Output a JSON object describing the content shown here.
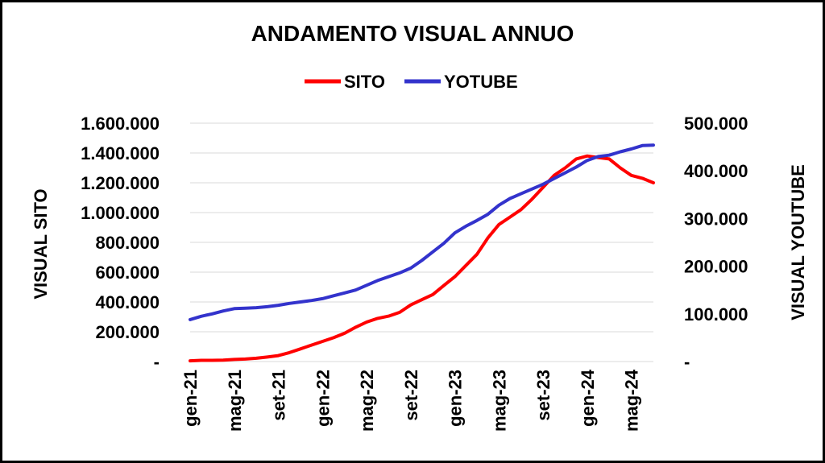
{
  "chart_data": {
    "type": "line",
    "title": "ANDAMENTO VISUAL ANNUO",
    "ylabel": "VISUAL SITO",
    "y2label": "VISUAL YOUTUBE",
    "legend_position": "top",
    "grid": true,
    "x_tick_labels": [
      "gen-21",
      "mag-21",
      "set-21",
      "gen-22",
      "mag-22",
      "set-22",
      "gen-23",
      "mag-23",
      "set-23",
      "gen-24",
      "mag-24"
    ],
    "y_tick_labels": [
      "-",
      "200.000",
      "400.000",
      "600.000",
      "800.000",
      "1.000.000",
      "1.200.000",
      "1.400.000",
      "1.600.000"
    ],
    "y2_tick_labels": [
      "-",
      "100.000",
      "200.000",
      "300.000",
      "400.000",
      "500.000"
    ],
    "ylim": [
      0,
      1600000
    ],
    "y2lim": [
      0,
      500000
    ],
    "x": [
      "gen-21",
      "feb-21",
      "mar-21",
      "apr-21",
      "mag-21",
      "giu-21",
      "lug-21",
      "ago-21",
      "set-21",
      "ott-21",
      "nov-21",
      "dic-21",
      "gen-22",
      "feb-22",
      "mar-22",
      "apr-22",
      "mag-22",
      "giu-22",
      "lug-22",
      "ago-22",
      "set-22",
      "ott-22",
      "nov-22",
      "dic-22",
      "gen-23",
      "feb-23",
      "mar-23",
      "apr-23",
      "mag-23",
      "giu-23",
      "lug-23",
      "ago-23",
      "set-23",
      "ott-23",
      "nov-23",
      "dic-23",
      "gen-24",
      "feb-24",
      "mar-24",
      "apr-24",
      "mag-24",
      "giu-24",
      "lug-24"
    ],
    "series": [
      {
        "name": "SITO",
        "axis": "left",
        "color": "#ff0000",
        "values": [
          5000,
          8000,
          8000,
          9000,
          14000,
          17000,
          22000,
          30000,
          40000,
          60000,
          85000,
          110000,
          135000,
          160000,
          190000,
          230000,
          265000,
          290000,
          305000,
          330000,
          380000,
          415000,
          450000,
          510000,
          570000,
          645000,
          720000,
          830000,
          920000,
          970000,
          1020000,
          1090000,
          1170000,
          1250000,
          1300000,
          1360000,
          1380000,
          1370000,
          1360000,
          1300000,
          1250000,
          1230000,
          1200000
        ]
      },
      {
        "name": "YOTUBE",
        "axis": "right",
        "color": "#3333cc",
        "values": [
          88000,
          95000,
          100000,
          106000,
          111000,
          112000,
          113000,
          115000,
          118000,
          122000,
          125000,
          128000,
          132000,
          138000,
          144000,
          150000,
          160000,
          170000,
          178000,
          186000,
          196000,
          212000,
          230000,
          248000,
          270000,
          284000,
          296000,
          309000,
          328000,
          342000,
          352000,
          362000,
          372000,
          384000,
          396000,
          408000,
          422000,
          430000,
          433000,
          440000,
          446000,
          453000,
          454000
        ]
      }
    ]
  }
}
